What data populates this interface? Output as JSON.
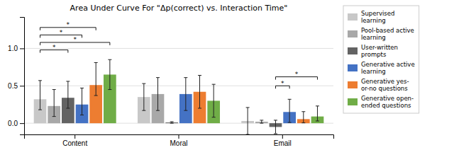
{
  "chart_data": {
    "type": "bar",
    "title": "Area Under Curve For \"Δp(correct) vs. Interaction Time\"",
    "categories": [
      "Content",
      "Moral",
      "Email"
    ],
    "series": [
      {
        "name": "Supervised\nlearning",
        "color": "#c8c8c8",
        "values": [
          0.32,
          0.35,
          0.03
        ],
        "error_low": [
          0.14,
          0.18,
          0.18
        ],
        "error_high": [
          0.25,
          0.18,
          0.18
        ]
      },
      {
        "name": "Pool-based active\nlearning",
        "color": "#a8a8a8",
        "values": [
          0.23,
          0.39,
          0.02
        ],
        "error_low": [
          0.14,
          0.22,
          0.02
        ],
        "error_high": [
          0.22,
          0.22,
          0.02
        ]
      },
      {
        "name": "User-written\nprompts",
        "color": "#636363",
        "values": [
          0.34,
          0.01,
          -0.05
        ],
        "error_low": [
          0.14,
          0.01,
          0.09
        ],
        "error_high": [
          0.22,
          0.01,
          0.09
        ]
      },
      {
        "name": "Generative active\nlearning",
        "color": "#4472c4",
        "values": [
          0.25,
          0.39,
          0.15
        ],
        "error_low": [
          0.14,
          0.22,
          0.14
        ],
        "error_high": [
          0.22,
          0.22,
          0.17
        ]
      },
      {
        "name": "Generative yes-\nor-no questions",
        "color": "#ed7d31",
        "values": [
          0.51,
          0.42,
          0.055
        ],
        "error_low": [
          0.14,
          0.22,
          0.05
        ],
        "error_high": [
          0.3,
          0.22,
          0.1
        ]
      },
      {
        "name": "Generative open-\nended questions",
        "color": "#70ad47",
        "values": [
          0.65,
          0.3,
          0.09
        ],
        "error_low": [
          0.2,
          0.22,
          0.06
        ],
        "error_high": [
          0.2,
          0.22,
          0.14
        ]
      }
    ],
    "annotations": [
      {
        "text": "*",
        "category": "Content",
        "series": [
          0,
          4
        ],
        "y": 1.28
      },
      {
        "text": "*",
        "category": "Content",
        "series": [
          0,
          3
        ],
        "y": 1.18
      },
      {
        "text": "*",
        "category": "Content",
        "series": [
          0,
          5
        ],
        "y": 1.08
      },
      {
        "text": "*",
        "category": "Content",
        "series": [
          0,
          2
        ],
        "y": 0.98
      },
      {
        "text": "*",
        "category": "Email",
        "series": [
          2,
          3
        ],
        "y": 0.5
      },
      {
        "text": "*",
        "category": "Email",
        "series": [
          2,
          5
        ],
        "y": 0.62
      }
    ],
    "ylim": [
      -0.15,
      1.42
    ],
    "yticks": [
      {
        "value": 0.0,
        "label": "0.0"
      },
      {
        "value": 0.5,
        "label": "0.5"
      },
      {
        "value": 1.0,
        "label": "1.0"
      }
    ],
    "grid": true,
    "legend": "right"
  }
}
